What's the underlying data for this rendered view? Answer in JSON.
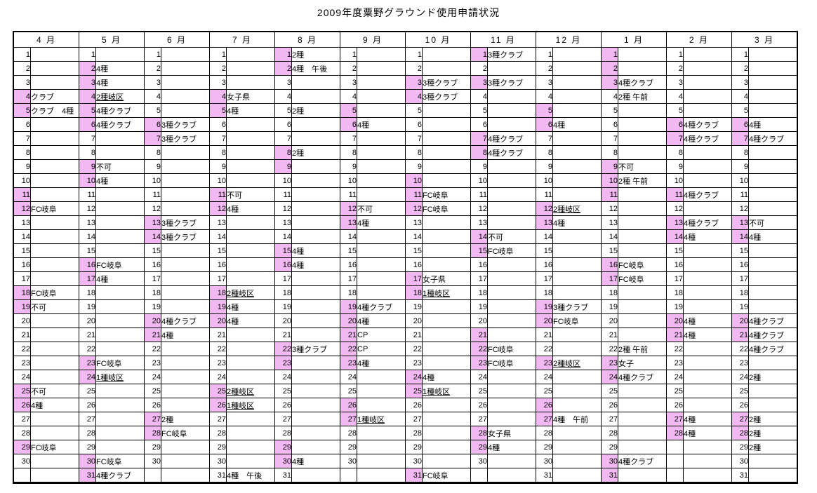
{
  "title": "2009年度粟野グラウンド使用申請状況",
  "colors": {
    "highlight": "#F2B8F1",
    "grid": "#000000",
    "background": "#FFFFFF"
  },
  "row_count": 31,
  "months": [
    {
      "label": "4 月",
      "days": 30,
      "entries": [
        {
          "d": 4,
          "h": true,
          "t": "クラブ"
        },
        {
          "d": 5,
          "h": true,
          "t": "クラブ　4種"
        },
        {
          "d": 11,
          "h": true
        },
        {
          "d": 12,
          "h": true,
          "t": "FC岐阜"
        },
        {
          "d": 18,
          "h": true,
          "t": "FC岐阜"
        },
        {
          "d": 19,
          "h": true,
          "t": "不可"
        },
        {
          "d": 25,
          "h": true,
          "t": "不可"
        },
        {
          "d": 26,
          "h": true,
          "t": "4種"
        },
        {
          "d": 29,
          "h": true,
          "t": "FC岐阜"
        }
      ]
    },
    {
      "label": "5 月",
      "days": 31,
      "entries": [
        {
          "d": 2,
          "h": true,
          "t": "4種"
        },
        {
          "d": 3,
          "h": true,
          "t": "4種"
        },
        {
          "d": 4,
          "h": true,
          "t": "2種岐区",
          "u": true
        },
        {
          "d": 5,
          "h": true,
          "t": "4種クラブ"
        },
        {
          "d": 6,
          "h": true,
          "t": "4種クラブ"
        },
        {
          "d": 9,
          "h": true,
          "t": "不可"
        },
        {
          "d": 10,
          "h": true,
          "t": "4種"
        },
        {
          "d": 16,
          "h": true,
          "t": "FC岐阜"
        },
        {
          "d": 17,
          "h": true,
          "t": "4種"
        },
        {
          "d": 23,
          "h": true,
          "t": "FC岐阜"
        },
        {
          "d": 24,
          "h": true,
          "t": "1種岐区",
          "u": true
        },
        {
          "d": 30,
          "h": true,
          "t": "FC岐阜"
        },
        {
          "d": 31,
          "h": true,
          "t": "4種クラブ"
        }
      ]
    },
    {
      "label": "6 月",
      "days": 30,
      "entries": [
        {
          "d": 6,
          "h": true,
          "t": "3種クラブ"
        },
        {
          "d": 7,
          "h": true,
          "t": "3種クラブ"
        },
        {
          "d": 13,
          "h": true,
          "t": "3種クラブ"
        },
        {
          "d": 14,
          "h": true,
          "t": "3種クラブ"
        },
        {
          "d": 20,
          "h": true,
          "t": "4種クラブ"
        },
        {
          "d": 21,
          "h": true,
          "t": "4種"
        },
        {
          "d": 27,
          "h": true,
          "t": "2種"
        },
        {
          "d": 28,
          "h": true,
          "t": "FC岐阜"
        }
      ]
    },
    {
      "label": "7 月",
      "days": 31,
      "entries": [
        {
          "d": 4,
          "h": true,
          "t": "女子県"
        },
        {
          "d": 5,
          "h": true,
          "t": "4種"
        },
        {
          "d": 11,
          "h": true,
          "t": "不可"
        },
        {
          "d": 12,
          "h": true,
          "t": "4種"
        },
        {
          "d": 18,
          "h": true,
          "t": "2種岐区",
          "u": true
        },
        {
          "d": 19,
          "h": true,
          "t": "4種"
        },
        {
          "d": 20,
          "h": true,
          "t": "4種"
        },
        {
          "d": 25,
          "h": true,
          "t": "2種岐区",
          "u": true
        },
        {
          "d": 26,
          "h": true,
          "t": "1種岐区",
          "u": true
        },
        {
          "d": 31,
          "h": false,
          "t": "4種　午後"
        }
      ]
    },
    {
      "label": "8 月",
      "days": 31,
      "entries": [
        {
          "d": 1,
          "h": true,
          "t": "2種"
        },
        {
          "d": 2,
          "h": true,
          "t": "4種　午後"
        },
        {
          "d": 5,
          "h": false,
          "t": "2種"
        },
        {
          "d": 8,
          "h": true,
          "t": "2種"
        },
        {
          "d": 9,
          "h": true
        },
        {
          "d": 15,
          "h": true,
          "t": "4種"
        },
        {
          "d": 16,
          "h": true,
          "t": "4種"
        },
        {
          "d": 22,
          "h": true,
          "t": "3種クラブ"
        },
        {
          "d": 23,
          "h": true
        },
        {
          "d": 29,
          "h": true
        },
        {
          "d": 30,
          "h": true,
          "t": "4種"
        }
      ]
    },
    {
      "label": "9 月",
      "days": 30,
      "entries": [
        {
          "d": 5,
          "h": true
        },
        {
          "d": 6,
          "h": true,
          "t": "4種"
        },
        {
          "d": 12,
          "h": true,
          "t": "不可"
        },
        {
          "d": 13,
          "h": true,
          "t": "4種"
        },
        {
          "d": 19,
          "h": true,
          "t": "4種クラブ"
        },
        {
          "d": 20,
          "h": true,
          "t": "4種"
        },
        {
          "d": 21,
          "h": true,
          "t": "CP"
        },
        {
          "d": 22,
          "h": true,
          "t": "CP"
        },
        {
          "d": 23,
          "h": true,
          "t": "4種"
        },
        {
          "d": 26,
          "h": true
        },
        {
          "d": 27,
          "h": true,
          "t": "1種岐区",
          "u": true
        }
      ]
    },
    {
      "label": "10 月",
      "days": 31,
      "entries": [
        {
          "d": 3,
          "h": true,
          "t": "3種クラブ"
        },
        {
          "d": 4,
          "h": true,
          "t": "3種クラブ"
        },
        {
          "d": 10,
          "h": true
        },
        {
          "d": 11,
          "h": true,
          "t": "FC岐阜"
        },
        {
          "d": 12,
          "h": true,
          "t": "FC岐阜"
        },
        {
          "d": 17,
          "h": true,
          "t": "女子県"
        },
        {
          "d": 18,
          "h": true,
          "t": "1種岐区",
          "u": true
        },
        {
          "d": 24,
          "h": true,
          "t": "4種"
        },
        {
          "d": 25,
          "h": true,
          "t": "1種岐区",
          "u": true
        },
        {
          "d": 31,
          "h": true,
          "t": "FC岐阜"
        }
      ]
    },
    {
      "label": "11 月",
      "days": 30,
      "entries": [
        {
          "d": 1,
          "h": true,
          "t": "3種クラブ"
        },
        {
          "d": 3,
          "h": true,
          "t": "3種クラブ"
        },
        {
          "d": 7,
          "h": true,
          "t": "4種クラブ"
        },
        {
          "d": 8,
          "h": true,
          "t": "4種クラブ"
        },
        {
          "d": 14,
          "h": true,
          "t": "不可"
        },
        {
          "d": 15,
          "h": true,
          "t": "FC岐阜"
        },
        {
          "d": 21,
          "h": true
        },
        {
          "d": 22,
          "h": true,
          "t": "FC岐阜"
        },
        {
          "d": 23,
          "h": true,
          "t": "FC岐阜"
        },
        {
          "d": 28,
          "h": true,
          "t": "女子県"
        },
        {
          "d": 29,
          "h": true,
          "t": "4種"
        }
      ]
    },
    {
      "label": "12 月",
      "days": 31,
      "entries": [
        {
          "d": 5,
          "h": true
        },
        {
          "d": 6,
          "h": true,
          "t": "4種"
        },
        {
          "d": 12,
          "h": true,
          "t": "2種岐区",
          "u": true
        },
        {
          "d": 13,
          "h": true,
          "t": "4種"
        },
        {
          "d": 19,
          "h": true,
          "t": "3種クラブ"
        },
        {
          "d": 20,
          "h": true,
          "t": "FC岐阜"
        },
        {
          "d": 23,
          "h": true,
          "t": "2種岐区",
          "u": true
        },
        {
          "d": 26,
          "h": true
        },
        {
          "d": 27,
          "h": true,
          "t": "4種　午前"
        }
      ]
    },
    {
      "label": "1 月",
      "days": 31,
      "entries": [
        {
          "d": 1,
          "h": true
        },
        {
          "d": 2,
          "h": true
        },
        {
          "d": 3,
          "h": true,
          "t": "4種クラブ"
        },
        {
          "d": 4,
          "h": false,
          "t": "2種 午前"
        },
        {
          "d": 9,
          "h": true,
          "t": "不可"
        },
        {
          "d": 10,
          "h": true,
          "t": "2種 午前"
        },
        {
          "d": 11,
          "h": true
        },
        {
          "d": 16,
          "h": true,
          "t": "FC岐阜"
        },
        {
          "d": 17,
          "h": true,
          "t": "FC岐阜"
        },
        {
          "d": 22,
          "h": false,
          "t": "2種 午前"
        },
        {
          "d": 23,
          "h": true,
          "t": "女子"
        },
        {
          "d": 24,
          "h": true,
          "t": "4種クラブ"
        },
        {
          "d": 30,
          "h": true,
          "t": "4種クラブ"
        },
        {
          "d": 31,
          "h": true
        }
      ]
    },
    {
      "label": "2 月",
      "days": 28,
      "entries": [
        {
          "d": 6,
          "h": true,
          "t": "4種クラブ"
        },
        {
          "d": 7,
          "h": true,
          "t": "4種クラブ"
        },
        {
          "d": 11,
          "h": true,
          "t": "4種クラブ"
        },
        {
          "d": 13,
          "h": true,
          "t": "4種クラブ"
        },
        {
          "d": 14,
          "h": true,
          "t": "4種"
        },
        {
          "d": 20,
          "h": true,
          "t": "4種"
        },
        {
          "d": 21,
          "h": true,
          "t": "4種"
        },
        {
          "d": 27,
          "h": true,
          "t": "4種"
        },
        {
          "d": 28,
          "h": true,
          "t": "4種"
        }
      ]
    },
    {
      "label": "3 月",
      "days": 31,
      "entries": [
        {
          "d": 6,
          "h": true,
          "t": "4種"
        },
        {
          "d": 7,
          "h": true,
          "t": "4種クラブ"
        },
        {
          "d": 13,
          "h": true,
          "t": "不可"
        },
        {
          "d": 14,
          "h": true,
          "t": "4種"
        },
        {
          "d": 20,
          "h": true,
          "t": "4種クラブ"
        },
        {
          "d": 21,
          "h": true,
          "t": "4種クラブ"
        },
        {
          "d": 22,
          "h": false,
          "t": "4種クラブ"
        },
        {
          "d": 24,
          "h": false,
          "t": "2種"
        },
        {
          "d": 27,
          "h": true,
          "t": "2種"
        },
        {
          "d": 28,
          "h": true,
          "t": "2種"
        },
        {
          "d": 29,
          "h": false,
          "t": "2種"
        }
      ]
    }
  ]
}
